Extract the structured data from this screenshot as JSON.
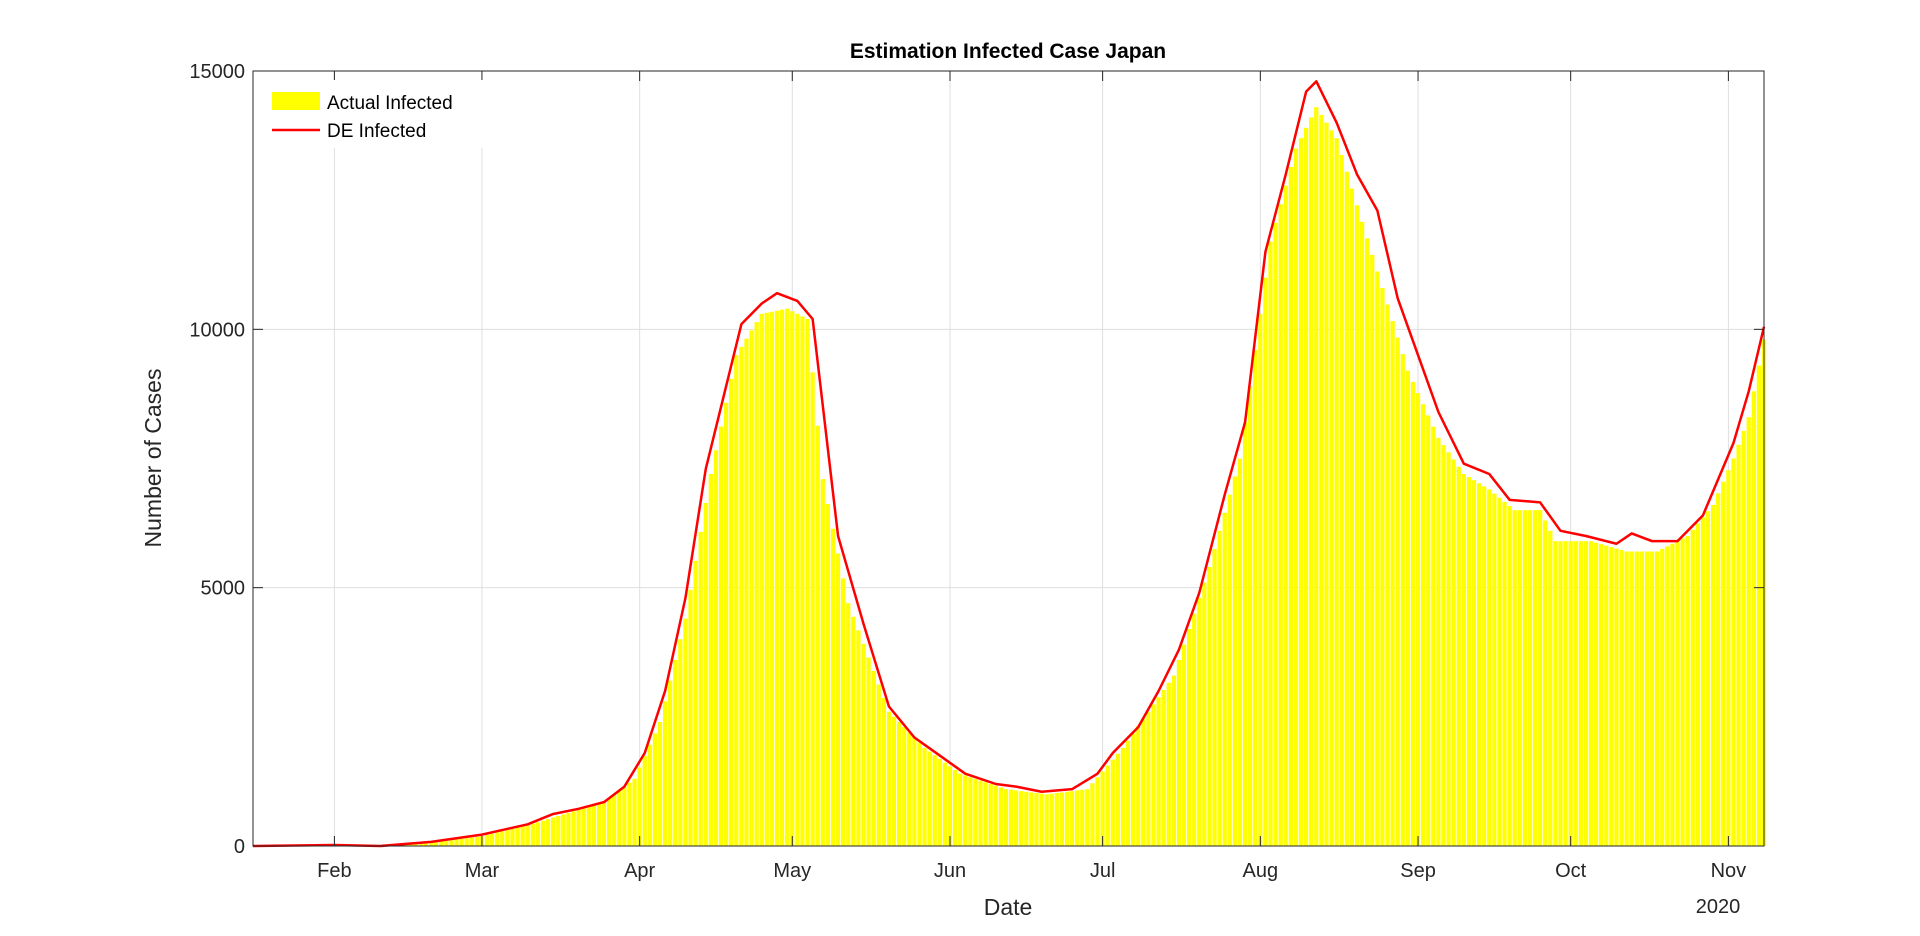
{
  "chart_data": {
    "type": "bar",
    "title": "Estimation Infected Case Japan",
    "xlabel": "Date",
    "ylabel": "Number of Cases",
    "year_label": "2020",
    "x_range": [
      "2020-01-16",
      "2020-11-08"
    ],
    "ylim": [
      0,
      15000
    ],
    "y_ticks": [
      0,
      5000,
      10000,
      15000
    ],
    "x_ticks": [
      {
        "date": "2020-02-01",
        "label": "Feb"
      },
      {
        "date": "2020-03-01",
        "label": "Mar"
      },
      {
        "date": "2020-04-01",
        "label": "Apr"
      },
      {
        "date": "2020-05-01",
        "label": "May"
      },
      {
        "date": "2020-06-01",
        "label": "Jun"
      },
      {
        "date": "2020-07-01",
        "label": "Jul"
      },
      {
        "date": "2020-08-01",
        "label": "Aug"
      },
      {
        "date": "2020-09-01",
        "label": "Sep"
      },
      {
        "date": "2020-10-01",
        "label": "Oct"
      },
      {
        "date": "2020-11-01",
        "label": "Nov"
      }
    ],
    "grid": true,
    "legend_location": "top-left",
    "series": [
      {
        "name": "Actual Infected",
        "kind": "bar",
        "color": "#ffff00",
        "points": [
          [
            "2020-01-16",
            0
          ],
          [
            "2020-02-01",
            10
          ],
          [
            "2020-02-10",
            0
          ],
          [
            "2020-02-20",
            60
          ],
          [
            "2020-03-01",
            190
          ],
          [
            "2020-03-10",
            400
          ],
          [
            "2020-03-20",
            700
          ],
          [
            "2020-03-25",
            850
          ],
          [
            "2020-03-31",
            1300
          ],
          [
            "2020-04-05",
            2400
          ],
          [
            "2020-04-10",
            4400
          ],
          [
            "2020-04-15",
            7200
          ],
          [
            "2020-04-20",
            9500
          ],
          [
            "2020-04-25",
            10300
          ],
          [
            "2020-04-30",
            10400
          ],
          [
            "2020-05-04",
            10200
          ],
          [
            "2020-05-07",
            7100
          ],
          [
            "2020-05-12",
            4700
          ],
          [
            "2020-05-20",
            2600
          ],
          [
            "2020-05-27",
            1900
          ],
          [
            "2020-06-03",
            1400
          ],
          [
            "2020-06-12",
            1100
          ],
          [
            "2020-06-20",
            1000
          ],
          [
            "2020-06-28",
            1100
          ],
          [
            "2020-07-05",
            1900
          ],
          [
            "2020-07-15",
            3300
          ],
          [
            "2020-07-22",
            5400
          ],
          [
            "2020-07-28",
            7500
          ],
          [
            "2020-08-03",
            11700
          ],
          [
            "2020-08-08",
            13500
          ],
          [
            "2020-08-12",
            14300
          ],
          [
            "2020-08-16",
            13700
          ],
          [
            "2020-08-20",
            12400
          ],
          [
            "2020-08-25",
            10800
          ],
          [
            "2020-08-30",
            9200
          ],
          [
            "2020-09-05",
            7900
          ],
          [
            "2020-09-10",
            7200
          ],
          [
            "2020-09-15",
            6900
          ],
          [
            "2020-09-20",
            6500
          ],
          [
            "2020-09-25",
            6500
          ],
          [
            "2020-09-28",
            5900
          ],
          [
            "2020-10-05",
            5900
          ],
          [
            "2020-10-12",
            5700
          ],
          [
            "2020-10-18",
            5700
          ],
          [
            "2020-10-24",
            6000
          ],
          [
            "2020-10-29",
            6600
          ],
          [
            "2020-11-02",
            7500
          ],
          [
            "2020-11-05",
            8300
          ],
          [
            "2020-11-08",
            9800
          ]
        ]
      },
      {
        "name": "DE Infected",
        "kind": "line",
        "color": "#ff0000",
        "points": [
          [
            "2020-01-16",
            0
          ],
          [
            "2020-02-01",
            20
          ],
          [
            "2020-02-10",
            0
          ],
          [
            "2020-02-20",
            80
          ],
          [
            "2020-03-01",
            220
          ],
          [
            "2020-03-10",
            420
          ],
          [
            "2020-03-15",
            620
          ],
          [
            "2020-03-20",
            720
          ],
          [
            "2020-03-25",
            850
          ],
          [
            "2020-03-29",
            1150
          ],
          [
            "2020-04-02",
            1800
          ],
          [
            "2020-04-06",
            3000
          ],
          [
            "2020-04-10",
            4800
          ],
          [
            "2020-04-14",
            7300
          ],
          [
            "2020-04-18",
            8900
          ],
          [
            "2020-04-21",
            10100
          ],
          [
            "2020-04-25",
            10500
          ],
          [
            "2020-04-28",
            10700
          ],
          [
            "2020-05-02",
            10550
          ],
          [
            "2020-05-05",
            10200
          ],
          [
            "2020-05-10",
            6000
          ],
          [
            "2020-05-15",
            4300
          ],
          [
            "2020-05-20",
            2700
          ],
          [
            "2020-05-25",
            2100
          ],
          [
            "2020-05-30",
            1750
          ],
          [
            "2020-06-04",
            1400
          ],
          [
            "2020-06-10",
            1200
          ],
          [
            "2020-06-14",
            1150
          ],
          [
            "2020-06-19",
            1050
          ],
          [
            "2020-06-25",
            1100
          ],
          [
            "2020-06-30",
            1400
          ],
          [
            "2020-07-03",
            1800
          ],
          [
            "2020-07-08",
            2300
          ],
          [
            "2020-07-12",
            3000
          ],
          [
            "2020-07-16",
            3800
          ],
          [
            "2020-07-20",
            4900
          ],
          [
            "2020-07-25",
            6800
          ],
          [
            "2020-07-29",
            8200
          ],
          [
            "2020-08-02",
            11500
          ],
          [
            "2020-08-06",
            13000
          ],
          [
            "2020-08-10",
            14600
          ],
          [
            "2020-08-12",
            14800
          ],
          [
            "2020-08-16",
            14000
          ],
          [
            "2020-08-20",
            13000
          ],
          [
            "2020-08-24",
            12300
          ],
          [
            "2020-08-28",
            10600
          ],
          [
            "2020-09-01",
            9500
          ],
          [
            "2020-09-05",
            8400
          ],
          [
            "2020-09-10",
            7400
          ],
          [
            "2020-09-15",
            7200
          ],
          [
            "2020-09-19",
            6700
          ],
          [
            "2020-09-25",
            6650
          ],
          [
            "2020-09-29",
            6100
          ],
          [
            "2020-10-04",
            6000
          ],
          [
            "2020-10-10",
            5850
          ],
          [
            "2020-10-13",
            6050
          ],
          [
            "2020-10-17",
            5900
          ],
          [
            "2020-10-22",
            5900
          ],
          [
            "2020-10-27",
            6400
          ],
          [
            "2020-11-02",
            7800
          ],
          [
            "2020-11-05",
            8800
          ],
          [
            "2020-11-08",
            10050
          ]
        ]
      }
    ]
  }
}
